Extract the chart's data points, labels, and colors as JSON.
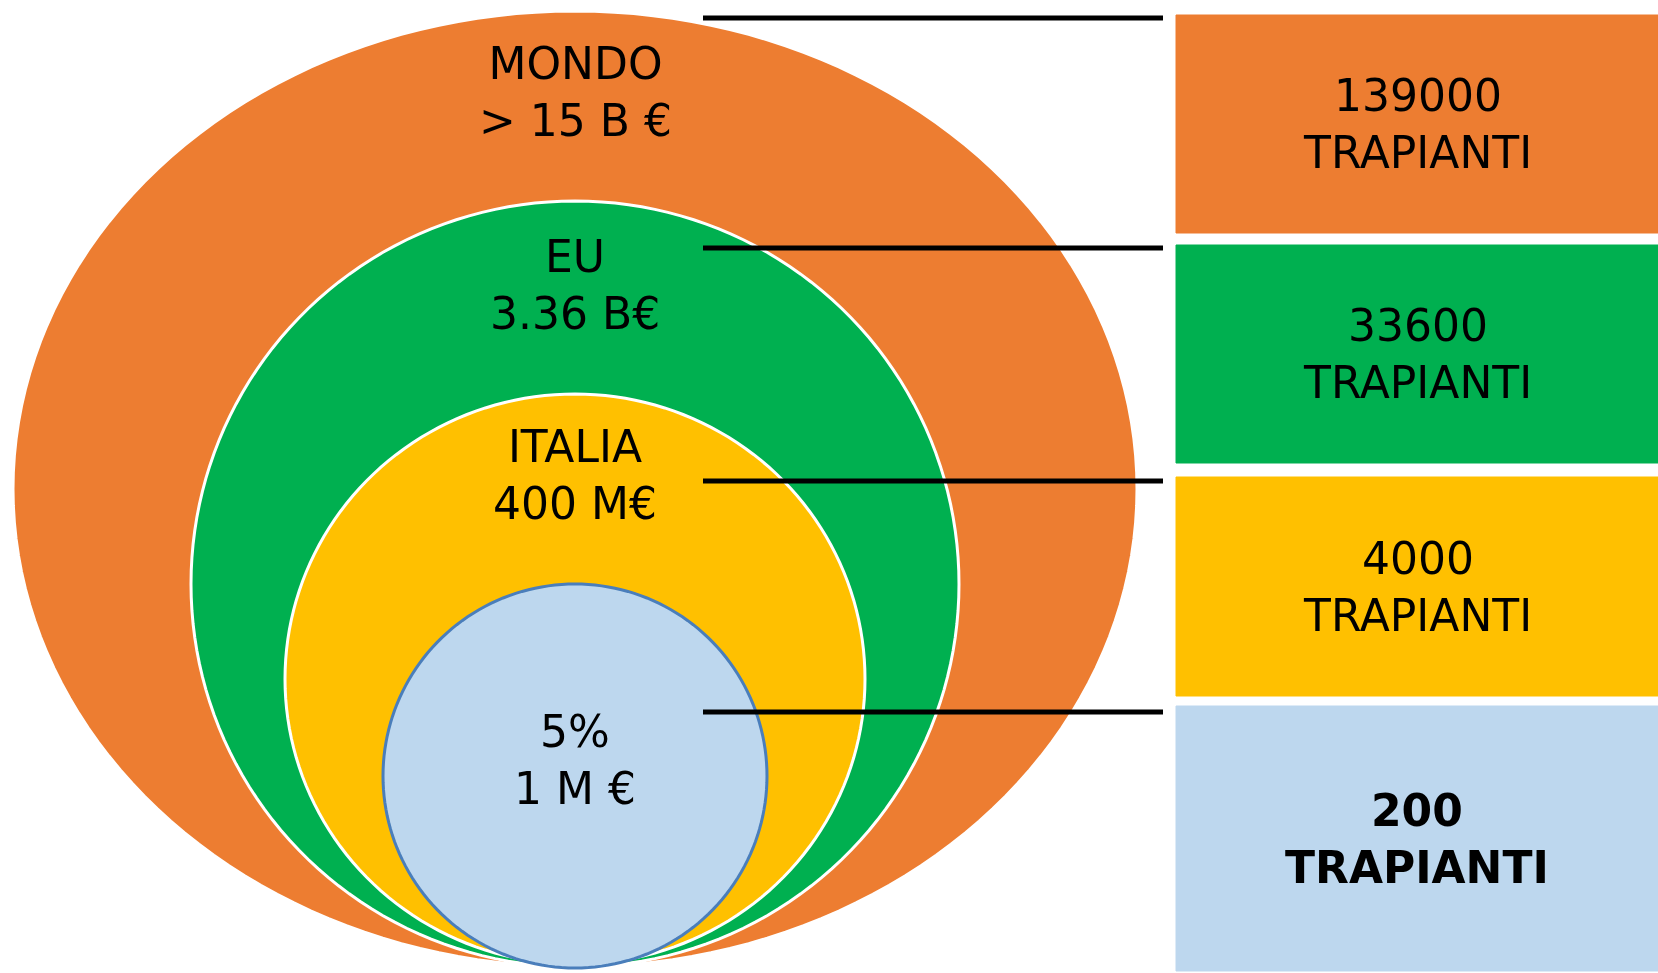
{
  "chart_data": {
    "type": "other",
    "categories": [
      "MONDO",
      "EU",
      "ITALIA",
      "5%"
    ],
    "value_labels": [
      "> 15 B €",
      "3.36 B€",
      "400 M€",
      "1 M €"
    ],
    "colors": [
      "#ed7d31",
      "#00b050",
      "#ffc000",
      "#bdd7ee"
    ],
    "series": [
      {
        "name": "TRAPIANTI",
        "values": [
          139000,
          33600,
          4000,
          200
        ]
      }
    ],
    "data_labels": true
  }
}
